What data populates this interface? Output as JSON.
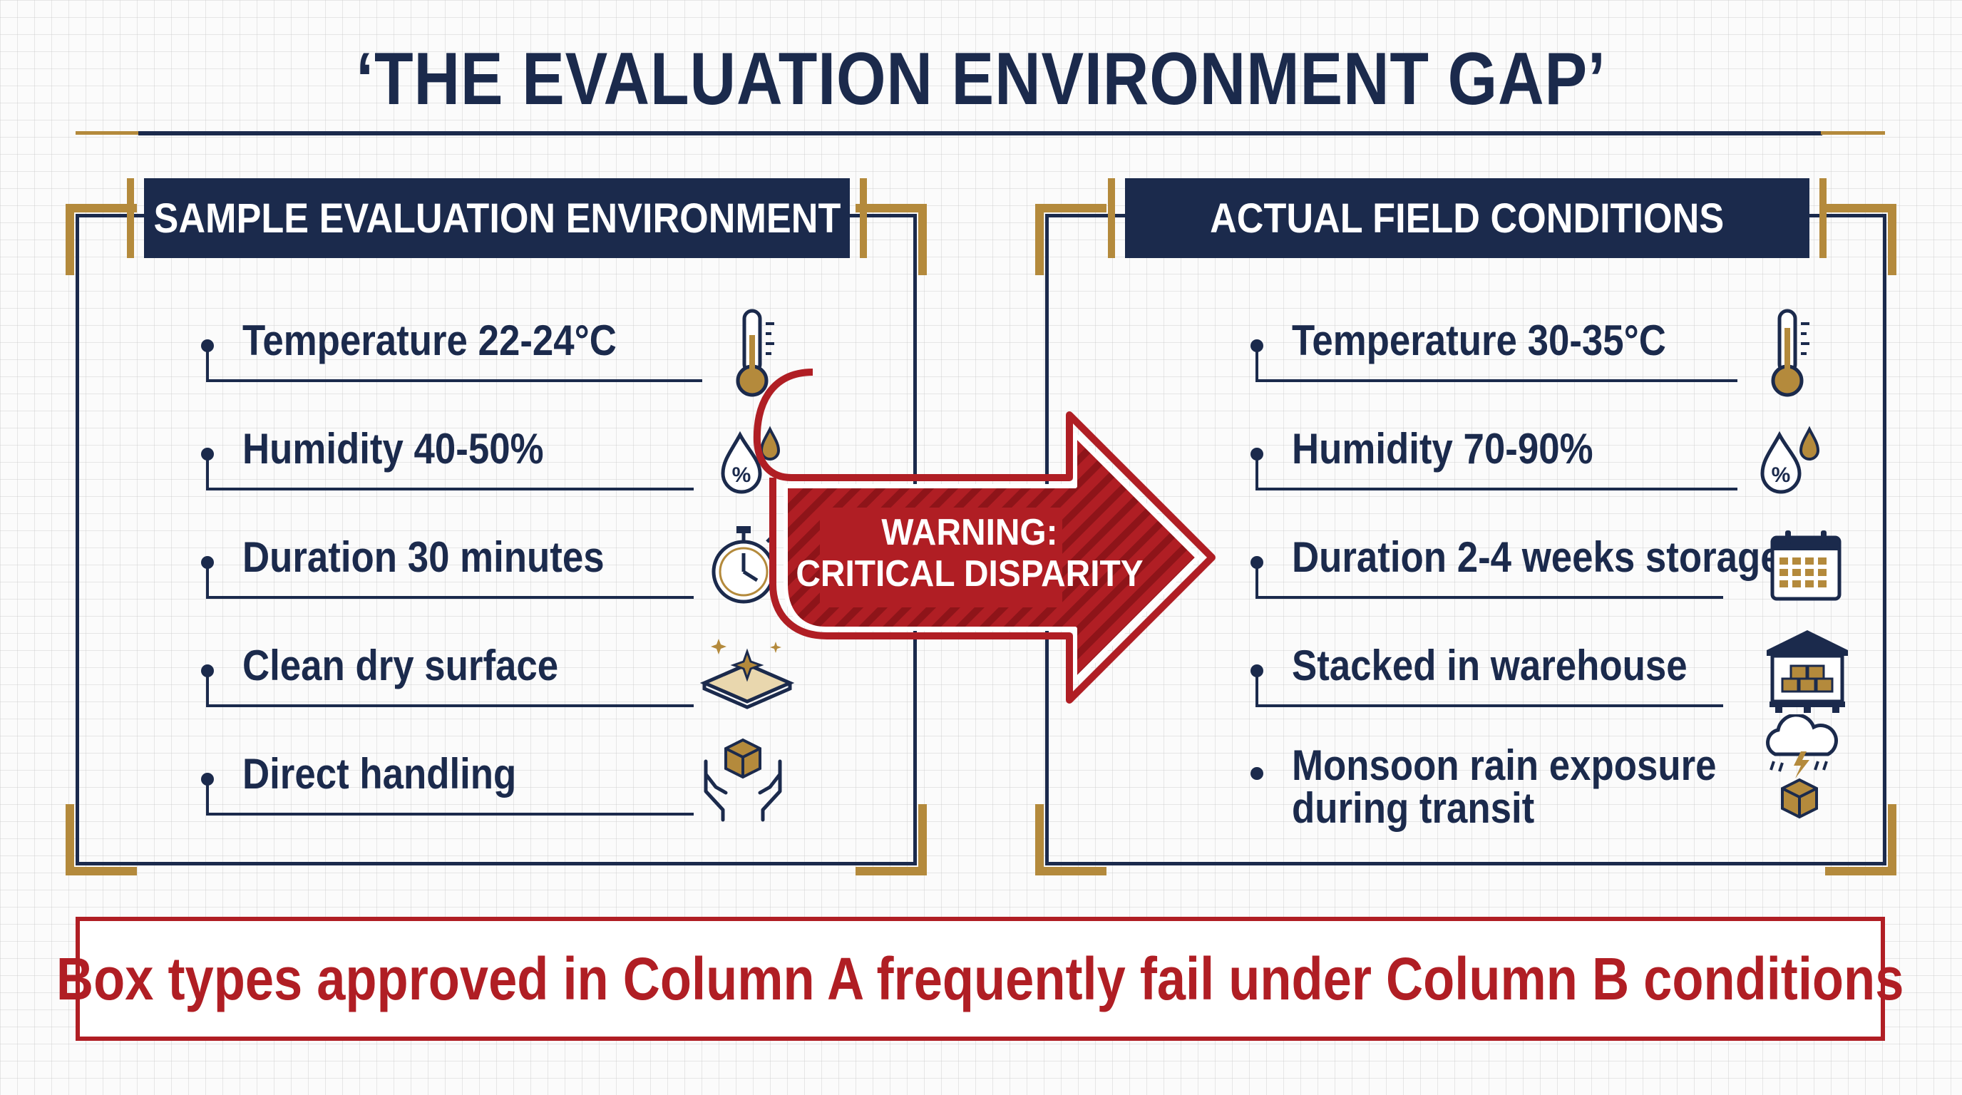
{
  "colors": {
    "navy": "#1b2a4c",
    "gold": "#b48a3c",
    "red": "#b01e24",
    "white": "#ffffff"
  },
  "title": "‘THE EVALUATION ENVIRONMENT GAP’",
  "left_panel": {
    "heading": "SAMPLE EVALUATION ENVIRONMENT",
    "items": [
      {
        "label": "Temperature 22-24°C",
        "icon": "thermometer-icon"
      },
      {
        "label": "Humidity 40-50%",
        "icon": "humidity-drop-icon"
      },
      {
        "label": "Duration 30 minutes",
        "icon": "stopwatch-icon"
      },
      {
        "label": "Clean dry surface",
        "icon": "clean-surface-icon"
      },
      {
        "label": "Direct handling",
        "icon": "hands-box-icon"
      }
    ]
  },
  "right_panel": {
    "heading": "ACTUAL FIELD CONDITIONS",
    "items": [
      {
        "label": "Temperature 30-35°C",
        "icon": "thermometer-icon"
      },
      {
        "label": "Humidity 70-90%",
        "icon": "humidity-drop-icon"
      },
      {
        "label": "Duration 2-4 weeks storage",
        "icon": "calendar-icon"
      },
      {
        "label": "Stacked in warehouse",
        "icon": "warehouse-icon"
      },
      {
        "label": "Monsoon rain exposure during transit",
        "icon": "storm-box-icon"
      }
    ]
  },
  "arrow": {
    "line1": "WARNING:",
    "line2": "CRITICAL DISPARITY",
    "icon": "warning-arrow-icon"
  },
  "callout": "Box types approved in Column A frequently fail under Column B conditions"
}
